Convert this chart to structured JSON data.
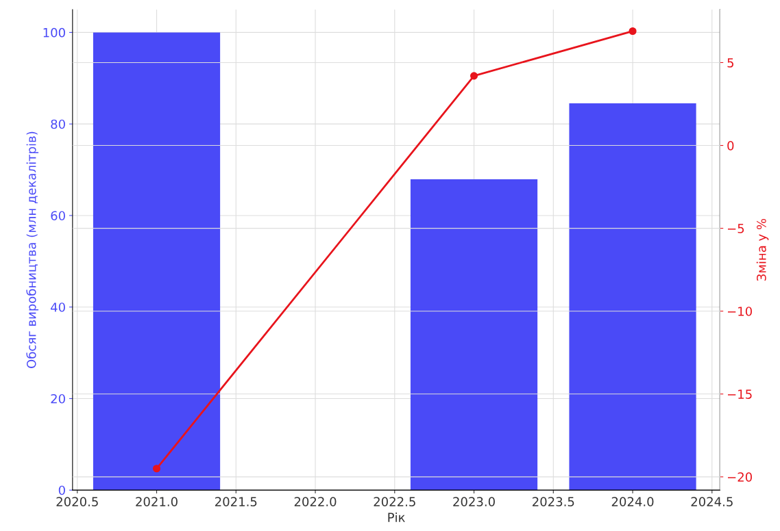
{
  "chart_data": {
    "type": "bar",
    "xlabel": "Рік",
    "ylabel": "Обсяг виробництва (млн декалітрів)",
    "y2label": "Зміна у %",
    "series": [
      {
        "color": "#4a4af7",
        "x": [
          2021,
          2023,
          2024
        ],
        "values": [
          100,
          67.9,
          84.5
        ]
      },
      {
        "type": "line",
        "color": "#e8141c",
        "x": [
          2021,
          2023,
          2024
        ],
        "values": [
          -19.5,
          4.2,
          6.9
        ],
        "axis": "y2",
        "marker": "circle"
      }
    ],
    "xlim": [
      2020.47,
      2024.55
    ],
    "xticks": [
      {
        "value": 2020.5,
        "label": "2020.5"
      },
      {
        "value": 2021,
        "label": "2021.0"
      },
      {
        "value": 2021.5,
        "label": "2021.5"
      },
      {
        "value": 2022,
        "label": "2022.0"
      },
      {
        "value": 2022.5,
        "label": "2022.5"
      },
      {
        "value": 2023,
        "label": "2023.0"
      },
      {
        "value": 2023.5,
        "label": "2023.5"
      },
      {
        "value": 2024,
        "label": "2024.0"
      },
      {
        "value": 2024.5,
        "label": "2024.5"
      }
    ],
    "ylim": [
      0,
      105
    ],
    "yticks": [
      0,
      20,
      40,
      60,
      80,
      100
    ],
    "y2lim": [
      -20.8,
      8.2
    ],
    "y2ticks": [
      {
        "value": -20,
        "label": "−20"
      },
      {
        "value": -15,
        "label": "−15"
      },
      {
        "value": -10,
        "label": "−10"
      },
      {
        "value": -5,
        "label": "−5"
      },
      0,
      5
    ],
    "grid": true
  }
}
